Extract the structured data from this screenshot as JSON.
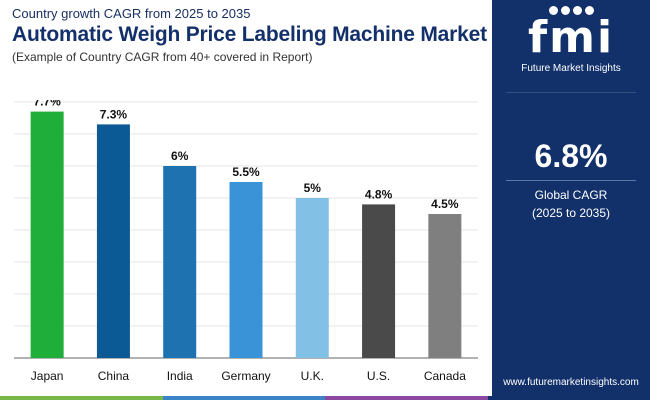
{
  "header": {
    "subtitle_top": "Country growth CAGR from 2025 to 2035",
    "title": "Automatic Weigh Price Labeling Machine Market",
    "subtitle_bottom": "(Example of Country CAGR from 40+ covered in Report)"
  },
  "side_panel": {
    "logo_mark": "fmi",
    "logo_text": "Future Market Insights",
    "global_cagr_value": "6.8%",
    "global_cagr_label": "Global CAGR",
    "global_cagr_period": "(2025 to 2035)",
    "website": "www.futuremarketinsights.com"
  },
  "colors": {
    "panel_bg": "#12306a",
    "title_text": "#14306b",
    "bottom_bar": [
      "#7ab648",
      "#3b83c4",
      "#8b4aa0",
      "#12306a"
    ]
  },
  "chart_data": {
    "type": "bar",
    "title": "",
    "xlabel": "",
    "ylabel": "",
    "ylim": [
      0,
      8
    ],
    "grid": true,
    "categories": [
      "Japan",
      "China",
      "India",
      "Germany",
      "U.K.",
      "U.S.",
      "Canada"
    ],
    "values": [
      7.7,
      7.3,
      6,
      5.5,
      5,
      4.8,
      4.5
    ],
    "data_labels": [
      "7.7%",
      "7.3%",
      "6%",
      "5.5%",
      "5%",
      "4.8%",
      "4.5%"
    ],
    "colors": [
      "#1fae3a",
      "#0b5a96",
      "#1f72b0",
      "#3a93d6",
      "#83c0e6",
      "#4a4a4a",
      "#7f7f7f"
    ]
  }
}
